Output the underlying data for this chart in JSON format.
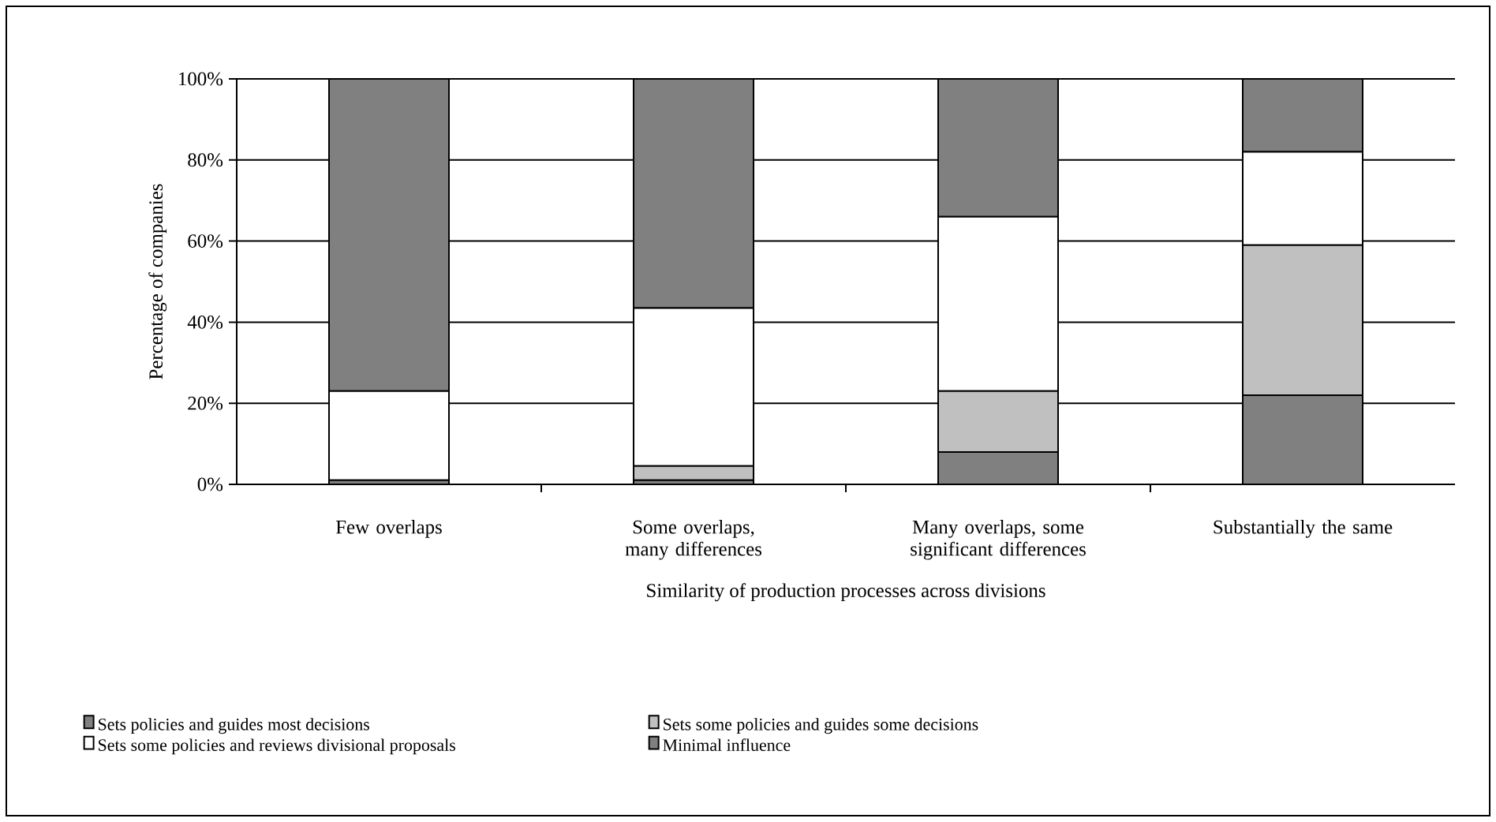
{
  "chart_data": {
    "type": "bar",
    "stacked": true,
    "xlabel": "Similarity of production processes across divisions",
    "ylabel": "Percentage of companies",
    "categories": [
      "Few overlaps",
      "Some overlaps, many differences",
      "Many overlaps, some significant differences",
      "Substantially the same"
    ],
    "series": [
      {
        "name": "Sets policies and guides most decisions",
        "color": "#808080",
        "values": [
          1,
          1,
          8,
          22
        ]
      },
      {
        "name": "Sets some policies and guides some decisions",
        "color": "#c0c0c0",
        "values": [
          0,
          3.5,
          15,
          37
        ]
      },
      {
        "name": "Sets some policies and reviews divisional proposals",
        "color": "#ffffff",
        "values": [
          22,
          39,
          43,
          23
        ]
      },
      {
        "name": "Minimal influence",
        "color": "#808080",
        "values": [
          77,
          56.5,
          34,
          18
        ]
      }
    ],
    "ylim": [
      0,
      100
    ],
    "yticks": [
      {
        "value": 0,
        "label": "0%"
      },
      {
        "value": 20,
        "label": "20%"
      },
      {
        "value": 40,
        "label": "40%"
      },
      {
        "value": 60,
        "label": "60%"
      },
      {
        "value": 80,
        "label": "80%"
      },
      {
        "value": 100,
        "label": "100%"
      }
    ],
    "grid": "y",
    "legend": "bottom"
  }
}
